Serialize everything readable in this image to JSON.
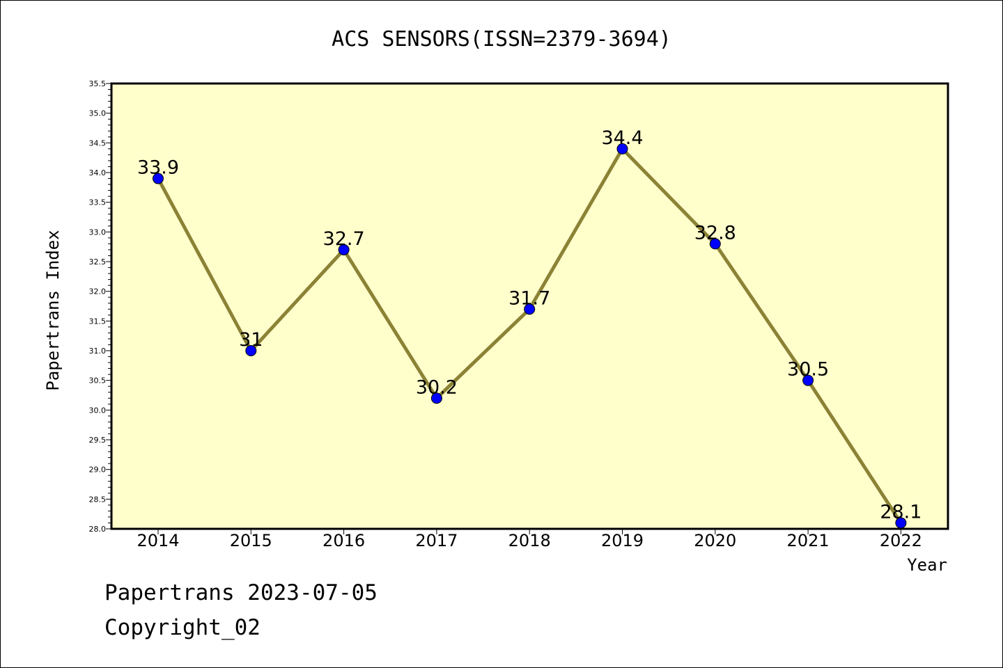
{
  "footer": {
    "line1": "Papertrans 2023-07-05",
    "line2": "Copyright_02"
  },
  "colors": {
    "plot_background": "#ffffcc",
    "line": "#8b8235",
    "marker": "#0000ff"
  },
  "chart_data": {
    "type": "line",
    "title": "ACS SENSORS(ISSN=2379-3694)",
    "xlabel": "Year",
    "ylabel": "Papertrans Index",
    "categories": [
      "2014",
      "2015",
      "2016",
      "2017",
      "2018",
      "2019",
      "2020",
      "2021",
      "2022"
    ],
    "series": [
      {
        "values": [
          33.9,
          31,
          32.7,
          30.2,
          31.7,
          34.4,
          32.8,
          30.5,
          28.1
        ],
        "data_labels": [
          "33.9",
          "31",
          "32.7",
          "30.2",
          "31.7",
          "34.4",
          "32.8",
          "30.5",
          "28.1"
        ]
      }
    ],
    "ylim": [
      28.0,
      35.5
    ],
    "yticks": [
      "28.0",
      "28.5",
      "29.0",
      "29.5",
      "30.0",
      "30.5",
      "31.0",
      "31.5",
      "32.0",
      "32.5",
      "33.0",
      "33.5",
      "34.0",
      "34.5",
      "35.0",
      "35.5"
    ],
    "grid": false,
    "legend": "none"
  }
}
